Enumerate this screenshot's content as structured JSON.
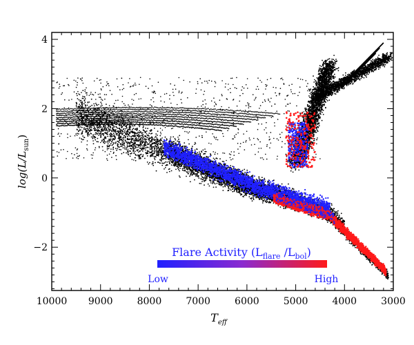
{
  "chart_data": {
    "type": "scatter",
    "xlabel": "T",
    "xlabel_sub": "eff",
    "ylabel": "log(L/L",
    "ylabel_sub": "sun",
    "ylabel_close": ")",
    "x_reversed": true,
    "xlim": [
      10000,
      3000
    ],
    "ylim": [
      -3.25,
      4.2
    ],
    "x_ticks": [
      10000,
      9000,
      8000,
      7000,
      6000,
      5000,
      4000,
      3000
    ],
    "x_tick_labels": [
      "10000",
      "9000",
      "8000",
      "7000",
      "6000",
      "5000",
      "4000",
      "3000"
    ],
    "y_ticks": [
      -2,
      0,
      2,
      4
    ],
    "y_tick_labels": [
      "−2",
      "0",
      "2",
      "4"
    ],
    "grid": false,
    "colorbar": {
      "title": "Flare Activity (L",
      "title_sub1": "flare",
      "title_mid": " /L",
      "title_sub2": "bol",
      "title_close": ")",
      "low_label": "Low",
      "high_label": "High",
      "color_low": "#2020ff",
      "color_high": "#ff1a1a",
      "placement": "bottom"
    },
    "series": [
      {
        "color": "#000000",
        "regions": [
          {
            "x": [
              4000,
              9500
            ],
            "y": [
              -0.8,
              1.9
            ],
            "note_density": "main-sequence"
          },
          {
            "x": [
              4100,
              5300
            ],
            "y": [
              0.3,
              3.3
            ]
          },
          {
            "x": [
              3000,
              4200
            ],
            "y": [
              2.8,
              3.6
            ]
          },
          {
            "x": [
              6500,
              9900
            ],
            "y": [
              1.3,
              2.4
            ]
          },
          {
            "x": [
              3300,
              4500
            ],
            "y": [
              -2.7,
              -0.8
            ]
          }
        ]
      },
      {
        "color": "#2020ff",
        "regions": [
          {
            "x": [
              4300,
              7700
            ],
            "y": [
              -0.8,
              1.7
            ]
          },
          {
            "x": [
              4700,
              5100
            ],
            "y": [
              0.3,
              1.6
            ]
          }
        ]
      },
      {
        "color": "#ff1a1a",
        "regions": [
          {
            "x": [
              3100,
              5500
            ],
            "y": [
              -2.7,
              -0.2
            ]
          },
          {
            "x": [
              4600,
              5200
            ],
            "y": [
              0.3,
              1.9
            ]
          }
        ]
      }
    ]
  }
}
